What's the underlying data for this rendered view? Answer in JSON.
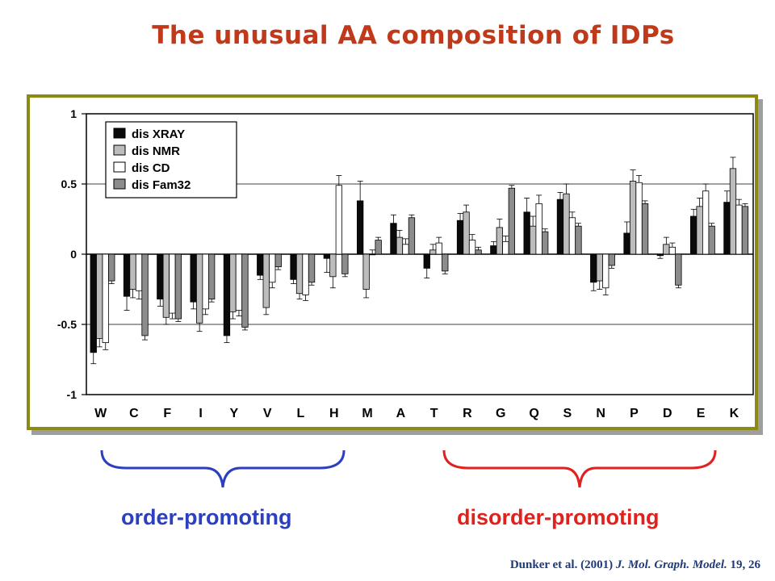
{
  "slide": {
    "title": "The unusual AA composition of IDPs",
    "order_label": "order-promoting",
    "disorder_label": "disorder-promoting",
    "citation": {
      "authors": "Dunker et al. (2001)",
      "journal": "J. Mol. Graph. Model.",
      "volume_pages": "19, 26"
    },
    "colors": {
      "title": "#c0391b",
      "order": "#2b3fbf",
      "disorder": "#e0211d",
      "frame": "#8c8a12"
    }
  },
  "chart_data": {
    "type": "bar",
    "categories": [
      "W",
      "C",
      "F",
      "I",
      "Y",
      "V",
      "L",
      "H",
      "M",
      "A",
      "T",
      "R",
      "G",
      "Q",
      "S",
      "N",
      "P",
      "D",
      "E",
      "K"
    ],
    "series": [
      {
        "name": "dis XRAY",
        "color": "#0a0a0a",
        "values": [
          -0.7,
          -0.3,
          -0.32,
          -0.34,
          -0.58,
          -0.15,
          -0.18,
          -0.03,
          0.38,
          0.22,
          -0.1,
          0.24,
          0.06,
          0.3,
          0.39,
          -0.2,
          0.15,
          -0.01,
          0.27,
          0.37
        ],
        "errors": [
          0.08,
          0.1,
          0.05,
          0.05,
          0.05,
          0.03,
          0.03,
          0.1,
          0.14,
          0.06,
          0.07,
          0.05,
          0.03,
          0.1,
          0.05,
          0.06,
          0.08,
          0.02,
          0.05,
          0.08
        ]
      },
      {
        "name": "dis NMR",
        "color": "#bcbcbc",
        "values": [
          -0.6,
          -0.25,
          -0.45,
          -0.49,
          -0.41,
          -0.38,
          -0.28,
          -0.16,
          -0.25,
          0.12,
          0.03,
          0.3,
          0.19,
          0.2,
          0.43,
          -0.19,
          0.52,
          0.07,
          0.34,
          0.61
        ],
        "errors": [
          0.06,
          0.06,
          0.05,
          0.06,
          0.05,
          0.05,
          0.04,
          0.08,
          0.06,
          0.05,
          0.04,
          0.05,
          0.06,
          0.07,
          0.07,
          0.06,
          0.08,
          0.05,
          0.06,
          0.08
        ]
      },
      {
        "name": "dis CD",
        "color": "#ffffff",
        "values": [
          -0.63,
          -0.26,
          -0.42,
          -0.39,
          -0.4,
          -0.2,
          -0.29,
          0.49,
          0.0,
          0.07,
          0.08,
          0.1,
          0.09,
          0.36,
          0.26,
          -0.24,
          0.51,
          0.05,
          0.45,
          0.35
        ],
        "errors": [
          0.05,
          0.06,
          0.04,
          0.04,
          0.04,
          0.04,
          0.04,
          0.07,
          0.03,
          0.04,
          0.04,
          0.04,
          0.04,
          0.06,
          0.04,
          0.05,
          0.05,
          0.03,
          0.05,
          0.04
        ]
      },
      {
        "name": "dis Fam32",
        "color": "#8c8c8c",
        "values": [
          -0.19,
          -0.58,
          -0.46,
          -0.32,
          -0.52,
          -0.09,
          -0.2,
          -0.14,
          0.1,
          0.26,
          -0.12,
          0.03,
          0.47,
          0.16,
          0.2,
          -0.08,
          0.36,
          -0.22,
          0.2,
          0.34
        ],
        "errors": [
          0.02,
          0.03,
          0.02,
          0.02,
          0.02,
          0.02,
          0.02,
          0.02,
          0.02,
          0.02,
          0.02,
          0.02,
          0.02,
          0.02,
          0.02,
          0.02,
          0.02,
          0.02,
          0.02,
          0.02
        ]
      }
    ],
    "ylim": [
      -1,
      1
    ],
    "yticks": [
      1,
      0.5,
      0,
      -0.5,
      -1
    ],
    "ytick_labels": [
      "1",
      "0.5",
      "0",
      "-0.5",
      "-1"
    ],
    "gridlines_at": [
      0.5,
      0,
      -0.5
    ],
    "legend": "top-left",
    "title": "",
    "xlabel": "",
    "ylabel": ""
  }
}
